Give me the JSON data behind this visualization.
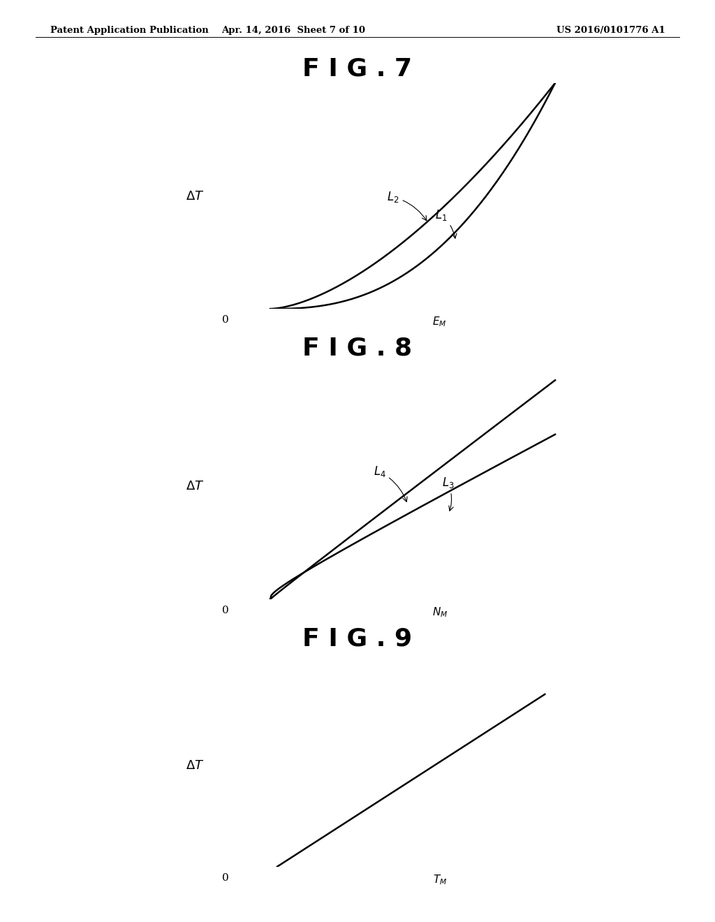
{
  "header_left": "Patent Application Publication",
  "header_mid": "Apr. 14, 2016  Sheet 7 of 10",
  "header_right": "US 2016/0101776 A1",
  "fig7_title": "F I G . 7",
  "fig8_title": "F I G . 8",
  "fig9_title": "F I G . 9",
  "background_color": "#ffffff",
  "line_color": "#000000",
  "text_color": "#000000",
  "fig7_ylabel": "ΔT",
  "fig7_xlabel": "Eₘ",
  "fig8_ylabel": "ΔT",
  "fig8_xlabel": "Nₘ",
  "fig9_ylabel": "ΔT",
  "fig9_xlabel": "Tₘ"
}
